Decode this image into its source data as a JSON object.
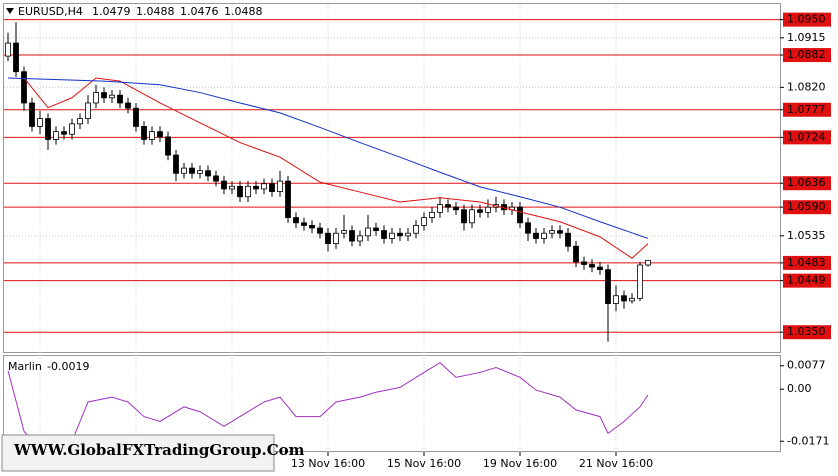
{
  "watermark": "WWW.GlobalFXTradingGroup.Com",
  "chart_data": [
    {
      "type": "candlestick",
      "title": "EURUSD,H4",
      "categories": [
        null,
        null,
        null,
        null,
        null,
        null,
        null,
        null,
        null,
        null,
        null,
        null,
        null,
        null,
        null,
        null,
        null,
        null,
        null,
        null,
        null,
        null,
        null,
        null,
        null,
        null,
        null,
        null,
        null,
        null,
        null,
        null,
        null,
        null,
        null,
        null,
        null,
        null,
        null,
        null,
        "13 Nov 16:00",
        null,
        null,
        null,
        null,
        null,
        null,
        null,
        null,
        null,
        null,
        null,
        "15 Nov 16:00",
        null,
        null,
        null,
        null,
        null,
        null,
        null,
        null,
        null,
        null,
        null,
        "19 Nov 16:00",
        null,
        null,
        null,
        null,
        null,
        null,
        null,
        null,
        null,
        null,
        null,
        "21 Nov 16:00",
        null,
        null,
        null,
        null
      ],
      "open": [
        1.088,
        1.0905,
        1.085,
        1.079,
        1.0745,
        1.076,
        1.072,
        1.0735,
        1.073,
        1.075,
        1.076,
        1.079,
        1.081,
        1.08,
        1.0805,
        1.079,
        1.078,
        1.0745,
        1.072,
        1.0735,
        1.0725,
        1.069,
        1.0655,
        1.0665,
        1.0655,
        1.066,
        1.065,
        1.064,
        1.0625,
        1.063,
        1.061,
        1.063,
        1.0625,
        1.0635,
        1.062,
        1.064,
        1.057,
        1.056,
        1.0555,
        1.055,
        1.054,
        1.052,
        1.054,
        1.0545,
        1.0525,
        1.0535,
        1.055,
        1.0545,
        1.053,
        1.054,
        1.0535,
        1.054,
        1.0555,
        1.057,
        1.058,
        1.0595,
        1.059,
        1.0585,
        1.056,
        1.0585,
        1.058,
        1.059,
        1.0595,
        1.0585,
        1.059,
        1.056,
        1.054,
        1.053,
        1.054,
        1.0545,
        1.054,
        1.0515,
        1.0485,
        1.048,
        1.0475,
        1.047,
        1.0405,
        1.042,
        1.041,
        1.0415,
        1.0479
      ],
      "high": [
        1.0925,
        1.0945,
        1.086,
        1.08,
        1.0775,
        1.077,
        1.0745,
        1.0745,
        1.076,
        1.077,
        1.0805,
        1.0825,
        1.082,
        1.0815,
        1.0815,
        1.08,
        1.079,
        1.0755,
        1.0745,
        1.0745,
        1.0735,
        1.07,
        1.0675,
        1.0675,
        1.067,
        1.067,
        1.066,
        1.065,
        1.064,
        1.064,
        1.064,
        1.064,
        1.0645,
        1.0645,
        1.066,
        1.065,
        1.058,
        1.057,
        1.0565,
        1.056,
        1.055,
        1.055,
        1.0575,
        1.0555,
        1.0545,
        1.0575,
        1.056,
        1.0555,
        1.055,
        1.055,
        1.055,
        1.0565,
        1.058,
        1.059,
        1.061,
        1.0605,
        1.06,
        1.0595,
        1.0595,
        1.0595,
        1.0605,
        1.061,
        1.0605,
        1.06,
        1.06,
        1.057,
        1.055,
        1.055,
        1.0555,
        1.0555,
        1.055,
        1.0525,
        1.0495,
        1.049,
        1.0485,
        1.048,
        1.044,
        1.043,
        1.0425,
        1.0485,
        1.0488
      ],
      "low": [
        1.087,
        1.084,
        1.0775,
        1.0735,
        1.073,
        1.07,
        1.071,
        1.072,
        1.072,
        1.074,
        1.075,
        1.078,
        1.079,
        1.079,
        1.078,
        1.077,
        1.0735,
        1.071,
        1.071,
        1.0715,
        1.068,
        1.064,
        1.0645,
        1.0645,
        1.0645,
        1.064,
        1.063,
        1.0615,
        1.0615,
        1.06,
        1.06,
        1.0615,
        1.0615,
        1.061,
        1.061,
        1.056,
        1.055,
        1.0545,
        1.054,
        1.053,
        1.0505,
        1.051,
        1.053,
        1.0515,
        1.0515,
        1.0525,
        1.0535,
        1.052,
        1.052,
        1.0525,
        1.0525,
        1.053,
        1.0545,
        1.056,
        1.057,
        1.058,
        1.0575,
        1.0545,
        1.055,
        1.057,
        1.057,
        1.058,
        1.0575,
        1.0575,
        1.055,
        1.0525,
        1.052,
        1.052,
        1.053,
        1.053,
        1.0505,
        1.0475,
        1.047,
        1.0465,
        1.046,
        1.0332,
        1.039,
        1.0395,
        1.0405,
        1.041,
        1.0476
      ],
      "close": [
        1.0905,
        1.085,
        1.079,
        1.0745,
        1.076,
        1.072,
        1.0735,
        1.073,
        1.075,
        1.076,
        1.079,
        1.081,
        1.08,
        1.0805,
        1.079,
        1.078,
        1.0745,
        1.072,
        1.0735,
        1.0725,
        1.069,
        1.0655,
        1.0665,
        1.0655,
        1.066,
        1.065,
        1.064,
        1.0625,
        1.063,
        1.061,
        1.063,
        1.0625,
        1.0635,
        1.062,
        1.064,
        1.057,
        1.056,
        1.0555,
        1.055,
        1.054,
        1.052,
        1.054,
        1.0545,
        1.0525,
        1.0535,
        1.055,
        1.0545,
        1.053,
        1.054,
        1.0535,
        1.054,
        1.0555,
        1.057,
        1.058,
        1.0595,
        1.059,
        1.0585,
        1.056,
        1.0585,
        1.058,
        1.059,
        1.0595,
        1.0585,
        1.059,
        1.056,
        1.054,
        1.053,
        1.054,
        1.0545,
        1.054,
        1.0515,
        1.0485,
        1.048,
        1.0475,
        1.047,
        1.0405,
        1.042,
        1.041,
        1.0415,
        1.0479,
        1.0488
      ],
      "up_color": "#ffffff",
      "down_color": "#000000",
      "lines": [
        {
          "color": "#e01010",
          "x": [
            2,
            5,
            8,
            11,
            14,
            19,
            24,
            29,
            34,
            39,
            44,
            49,
            54,
            59,
            64,
            69,
            74,
            78,
            80
          ],
          "values": [
            1.0838,
            1.0781,
            1.08,
            1.0838,
            1.0832,
            1.079,
            1.0752,
            1.0714,
            1.0686,
            1.0638,
            1.0619,
            1.06,
            1.0608,
            1.06,
            1.0581,
            1.0562,
            1.0533,
            1.0492,
            1.052
          ]
        },
        {
          "color": "#1030c8",
          "x": [
            0,
            12,
            19,
            24,
            29,
            34,
            39,
            44,
            49,
            54,
            59,
            64,
            69,
            74,
            80
          ],
          "values": [
            1.0838,
            1.0832,
            1.0825,
            1.081,
            1.079,
            1.0771,
            1.0743,
            1.0714,
            1.0686,
            1.0657,
            1.0629,
            1.061,
            1.059,
            1.0562,
            1.053
          ]
        }
      ],
      "levels": {
        "color": "#e01010",
        "values": [
          1.095,
          1.0882,
          1.0777,
          1.0724,
          1.0636,
          1.059,
          1.0483,
          1.0449,
          1.035
        ]
      },
      "ylim": [
        1.0312,
        1.098
      ],
      "yticks": [
        {
          "value": 1.095,
          "label": "1.0950"
        },
        1.0915,
        1.0882,
        {
          "value": 1.082,
          "label": "1.0820"
        },
        1.0777,
        1.0724,
        1.0636,
        {
          "value": 1.059,
          "label": "1.0590"
        },
        1.0535,
        1.0483,
        1.0449,
        {
          "value": 1.035,
          "label": "1.0350"
        }
      ],
      "grid": true
    },
    {
      "type": "line",
      "title": "Marlin",
      "color": "#a030c0",
      "x": [
        0,
        2,
        4,
        8,
        10,
        13,
        15,
        17,
        19,
        22,
        24,
        27,
        29,
        32,
        34,
        36,
        39,
        41,
        44,
        46,
        49,
        52,
        54,
        56,
        59,
        61,
        64,
        66,
        69,
        71,
        74,
        75,
        77,
        79,
        80
      ],
      "values": [
        0.0061,
        -0.0138,
        -0.02,
        -0.0171,
        -0.0042,
        -0.0026,
        -0.0042,
        -0.009,
        -0.0106,
        -0.0058,
        -0.0074,
        -0.0122,
        -0.009,
        -0.0042,
        -0.0026,
        -0.009,
        -0.009,
        -0.0042,
        -0.0026,
        -0.001,
        0.0006,
        0.0055,
        0.0087,
        0.0039,
        0.0055,
        0.0071,
        0.0039,
        -0.0003,
        -0.0026,
        -0.0068,
        -0.009,
        -0.0145,
        -0.0106,
        -0.0058,
        -0.0019
      ],
      "ylim": [
        -0.0203,
        0.0109
      ],
      "yticks": [
        0.0077,
        {
          "value": 0,
          "label": "0.00"
        },
        -0.0171
      ]
    }
  ]
}
